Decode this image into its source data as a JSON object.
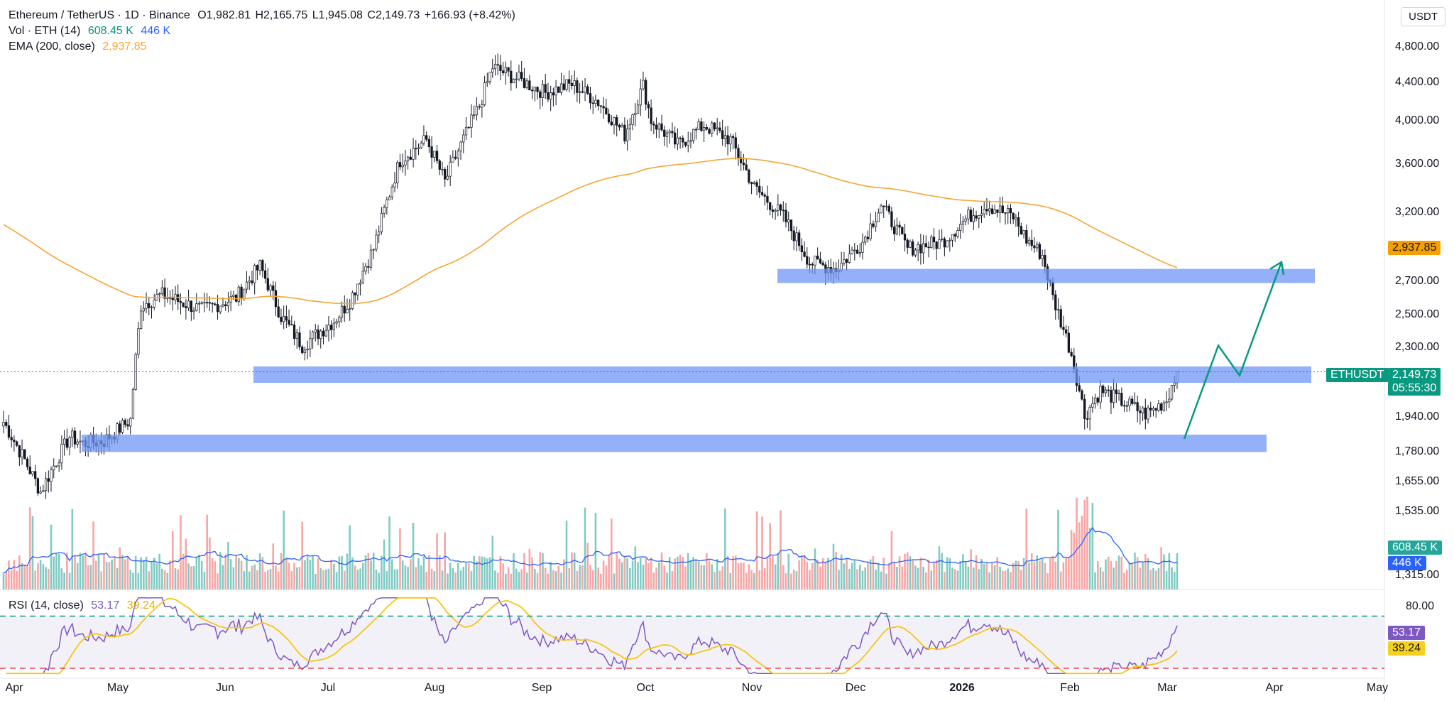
{
  "header": {
    "symbol": "Ethereum / TetherUS · 1D · Binance",
    "open": "O1,982.81",
    "high": "H2,165.75",
    "low": "L1,945.08",
    "close": "C2,149.73",
    "change": "+166.93 (+8.42%)",
    "vol_label": "Vol · ETH (14)",
    "vol_value": "608.45 K",
    "vol_ma": "446 K",
    "ema_label": "EMA (200, close)",
    "ema_value": "2,937.85",
    "currency": "USDT"
  },
  "rsi_legend": {
    "label": "RSI (14, close)",
    "value": "53.17",
    "ma": "39.24"
  },
  "price_axis": [
    "4,800.00",
    "4,400.00",
    "4,000.00",
    "3,600.00",
    "3,200.00",
    "2,700.00",
    "2,500.00",
    "2,300.00",
    "1,940.00",
    "1,780.00",
    "1,655.00",
    "1,535.00",
    "1,315.00"
  ],
  "rsi_axis": [
    "80.00"
  ],
  "tags": {
    "ema": "2,937.85",
    "symbol": "ETHUSDT",
    "price": "2,149.73",
    "countdown": "05:55:30",
    "volume": "608.45 K",
    "volume_ma": "446 K",
    "rsi": "53.17",
    "rsi_ma": "39.24"
  },
  "x_axis": [
    "Apr",
    "May",
    "Jun",
    "Jul",
    "Aug",
    "Sep",
    "Oct",
    "Nov",
    "Dec",
    "2026",
    "Feb",
    "Mar",
    "Apr",
    "May"
  ],
  "colors": {
    "up": "#131722",
    "down": "#131722",
    "vol_up": "#80cbc4",
    "vol_down": "#f7a5a5",
    "ema": "#f7a534",
    "vol_ma": "#2962ff",
    "rsi": "#7e57c2",
    "rsi_ma": "#f5c518",
    "zone": "#6f95f5",
    "projection": "#089981"
  },
  "chart_data": [
    {
      "type": "candlestick",
      "title": "Ethereum / TetherUS · 1D · Binance",
      "scale": "log",
      "ylim": [
        1280,
        4950
      ],
      "x": [
        "2025-04",
        "2025-05",
        "2025-06",
        "2025-07",
        "2025-08",
        "2025-09",
        "2025-10",
        "2025-11",
        "2025-12",
        "2026-01",
        "2026-02",
        "2026-03"
      ],
      "close_approx": [
        1800,
        2500,
        2500,
        2550,
        4300,
        4400,
        4000,
        3000,
        2950,
        3200,
        1950,
        2149.73
      ],
      "high_approx": [
        2000,
        2750,
        2850,
        3100,
        4950,
        4900,
        4700,
        3650,
        3450,
        3400,
        2950,
        2165.75
      ],
      "low_approx": [
        1400,
        1780,
        2380,
        2150,
        3400,
        4150,
        3500,
        2650,
        2650,
        2800,
        1750,
        1945.08
      ],
      "last": {
        "open": 1982.81,
        "high": 2165.75,
        "low": 1945.08,
        "close": 2149.73
      }
    },
    {
      "type": "line",
      "series": [
        {
          "name": "EMA (200, close)",
          "last": 2937.85
        }
      ]
    },
    {
      "type": "bar",
      "series": [
        {
          "name": "Vol · ETH (14)",
          "last": "608.45 K"
        },
        {
          "name": "MA",
          "last": "446 K"
        }
      ]
    },
    {
      "type": "line",
      "series": [
        {
          "name": "RSI (14, close)",
          "last": 53.17
        },
        {
          "name": "MA",
          "last": 39.24
        }
      ],
      "reference_lines": [
        30,
        70
      ],
      "ylim": [
        25,
        85
      ]
    },
    {
      "type": "annotation",
      "zones": [
        {
          "from": 2700,
          "to": 2800
        },
        {
          "from": 2090,
          "to": 2180
        },
        {
          "from": 1750,
          "to": 1830
        }
      ],
      "projection": [
        1810,
        2300,
        2130,
        2850
      ]
    }
  ]
}
